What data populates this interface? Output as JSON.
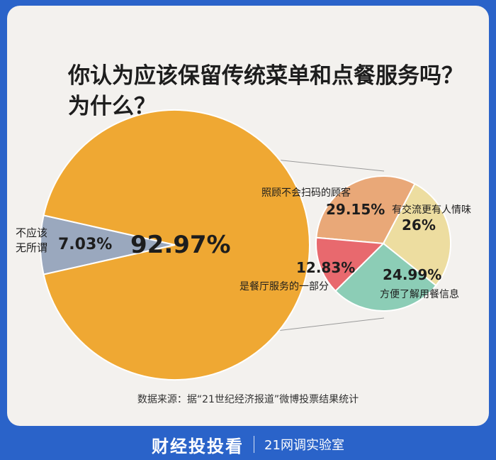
{
  "header": {
    "title_line1": "你认为应该保留传统菜单和点餐服务吗？",
    "title_line2": "为什么？"
  },
  "source_text": "数据来源：据“21世纪经济报道”微博投票结果统计",
  "footer": {
    "brand": "财经投投看",
    "lab": "21网调实验室"
  },
  "colors": {
    "orange": "#efa833",
    "gray_blue": "#9aa8be",
    "salmon": "#e9a878",
    "cream": "#eddda0",
    "teal": "#8ccdb6",
    "red": "#e8696e",
    "background": "#2a63c9"
  },
  "chart_data": [
    {
      "type": "pie",
      "slices": [
        {
          "name": "不应该无所谓",
          "name_line1": "不应该",
          "name_line2": "无所谓",
          "value": 7.03,
          "label": "7.03%"
        },
        {
          "name": "",
          "value": 92.97,
          "label": "92.97%"
        }
      ]
    },
    {
      "type": "pie",
      "slices": [
        {
          "name": "照顾不会扫码的顾客",
          "value": 29.15,
          "label": "29.15%"
        },
        {
          "name": "有交流更有人情味",
          "value": 26,
          "label": "26%"
        },
        {
          "name": "方便了解用餐信息",
          "value": 24.99,
          "label": "24.99%"
        },
        {
          "name": "是餐厅服务的一部分",
          "value": 12.83,
          "label": "12.83%"
        }
      ]
    }
  ]
}
